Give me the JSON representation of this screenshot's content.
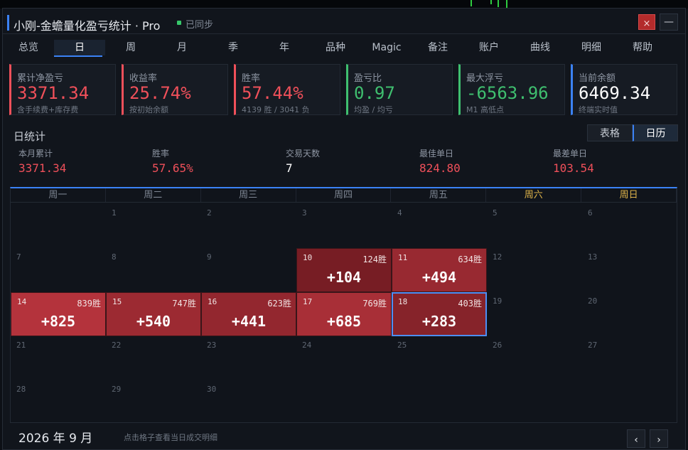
{
  "window": {
    "title": "小刚-金蟾量化盈亏统计 · Pro",
    "sync_status": "已同步",
    "close_label": "×",
    "minimize_label": "—"
  },
  "tabs": [
    {
      "label": "总览"
    },
    {
      "label": "日"
    },
    {
      "label": "周"
    },
    {
      "label": "月"
    },
    {
      "label": "季"
    },
    {
      "label": "年"
    },
    {
      "label": "品种"
    },
    {
      "label": "Magic"
    },
    {
      "label": "备注"
    },
    {
      "label": "账户"
    },
    {
      "label": "曲线"
    },
    {
      "label": "明细"
    },
    {
      "label": "帮助"
    }
  ],
  "active_tab": "日",
  "cards": [
    {
      "label": "累计净盈亏",
      "value": "3371.34",
      "sub": "含手续费+库存费",
      "color": "#f0505a"
    },
    {
      "label": "收益率",
      "value": "25.74%",
      "sub": "按初始余额",
      "color": "#f0505a"
    },
    {
      "label": "胜率",
      "value": "57.44%",
      "sub": "4139 胜 / 3041 负",
      "color": "#f0505a"
    },
    {
      "label": "盈亏比",
      "value": "0.97",
      "sub": "均盈 / 均亏",
      "color": "#3fbf6f"
    },
    {
      "label": "最大浮亏",
      "value": "-6563.96",
      "sub": "M1 高低点",
      "color": "#3fbf6f"
    },
    {
      "label": "当前余额",
      "value": "6469.34",
      "sub": "终端实时值",
      "color": "#ffffff"
    }
  ],
  "section": {
    "title": "日统计",
    "view_table": "表格",
    "view_calendar": "日历"
  },
  "stats": [
    {
      "label": "本月累计",
      "value": "3371.34",
      "color": "#f0505a"
    },
    {
      "label": "胜率",
      "value": "57.65%",
      "color": "#f0505a"
    },
    {
      "label": "交易天数",
      "value": "7",
      "color": "#ffffff"
    },
    {
      "label": "最佳单日",
      "value": "824.80",
      "color": "#f0505a"
    },
    {
      "label": "最差单日",
      "value": "103.54",
      "color": "#f0505a"
    }
  ],
  "calendar": {
    "weekdays": [
      "周一",
      "周二",
      "周三",
      "周四",
      "周五",
      "周六",
      "周日"
    ],
    "month_label": "2026 年 9 月",
    "hint": "点击格子查看当日成交明细",
    "prev_label": "‹",
    "next_label": "›",
    "start_weekday": 1,
    "days_in_month": 30,
    "trading_days": [
      {
        "day": 10,
        "wins": "124胜",
        "pnl": "+104",
        "pnl_value": 104
      },
      {
        "day": 11,
        "wins": "634胜",
        "pnl": "+494",
        "pnl_value": 494
      },
      {
        "day": 14,
        "wins": "839胜",
        "pnl": "+825",
        "pnl_value": 825
      },
      {
        "day": 15,
        "wins": "747胜",
        "pnl": "+540",
        "pnl_value": 540
      },
      {
        "day": 16,
        "wins": "623胜",
        "pnl": "+441",
        "pnl_value": 441
      },
      {
        "day": 17,
        "wins": "769胜",
        "pnl": "+685",
        "pnl_value": 685
      },
      {
        "day": 18,
        "wins": "403胜",
        "pnl": "+283",
        "pnl_value": 283
      }
    ],
    "selected_day": 18
  },
  "colors": {
    "accent": "#3b82f6",
    "profit": "#f0505a",
    "loss": "#3fbf6f",
    "weekend": "#e0b54a"
  }
}
